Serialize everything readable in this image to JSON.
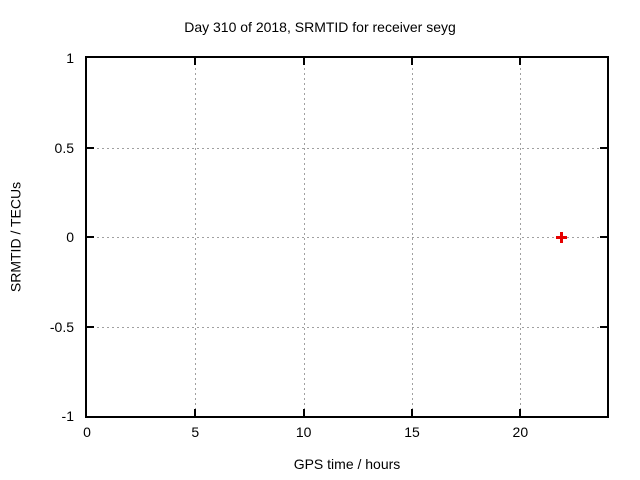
{
  "window": {
    "background": "#ffffff"
  },
  "chart_data": {
    "type": "scatter",
    "title": "Day 310 of 2018, SRMTID for receiver seyg",
    "xlabel": "GPS time / hours",
    "ylabel": "SRMTID / TECUs",
    "xlim": [
      0,
      24
    ],
    "ylim": [
      -1,
      1
    ],
    "x_ticks": [
      0,
      5,
      10,
      15,
      20
    ],
    "y_ticks": [
      -1,
      -0.5,
      0,
      0.5,
      1
    ],
    "grid": true,
    "legend": "none",
    "colors": {
      "border": "#000000",
      "grid": "#a0a0a0",
      "text": "#000000",
      "background": "#ffffff"
    },
    "series": [
      {
        "name": "SRMTID",
        "marker": "plus",
        "marker_size": 11,
        "marker_stroke": 3,
        "color": "#e60000",
        "points": [
          {
            "x": 21.9,
            "y": 0.0
          }
        ]
      }
    ]
  }
}
